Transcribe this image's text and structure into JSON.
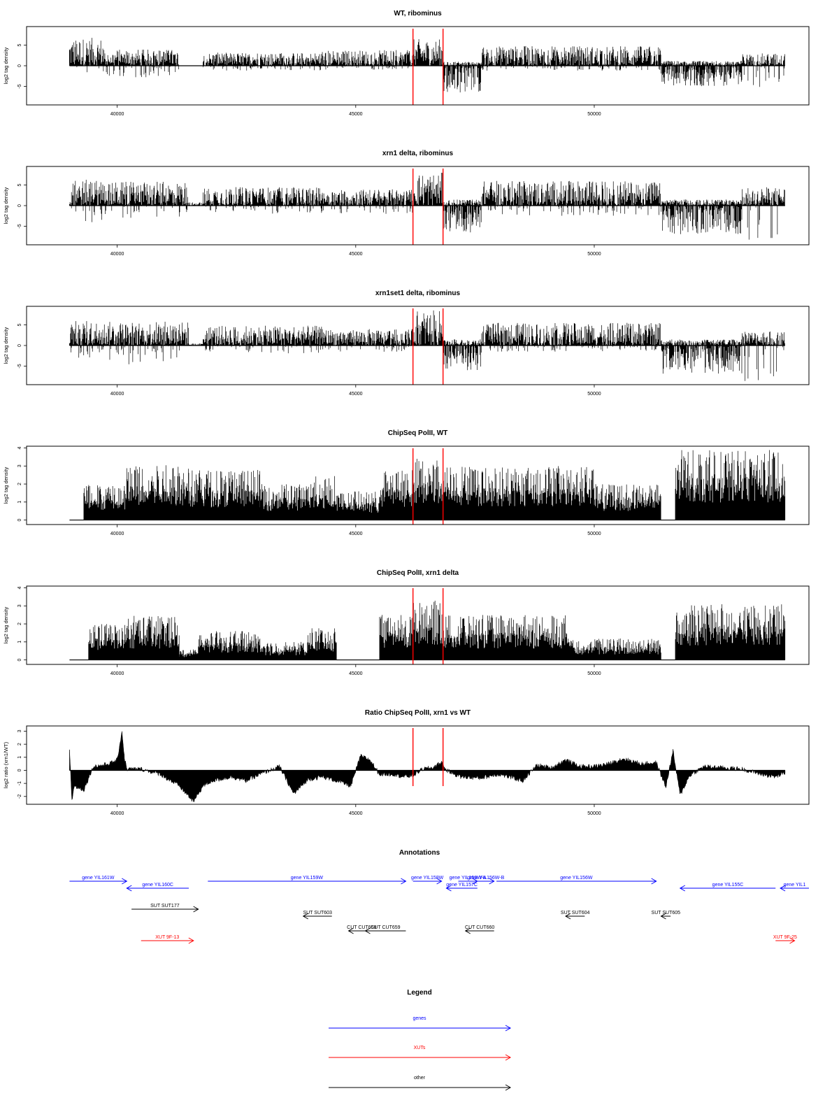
{
  "x_ticks": [
    40000,
    45000,
    50000
  ],
  "markers": {
    "color": "#ff0000",
    "positions": [
      46200,
      46830
    ]
  },
  "chart_data": [
    {
      "type": "bar",
      "title": "WT, ribominus",
      "ylabel": "log2 tag density",
      "xlim": [
        38100,
        54500
      ],
      "ylim": [
        -9.5,
        9.5
      ],
      "yticks": [
        -5,
        0,
        5
      ],
      "baseline": 0,
      "segments": [
        {
          "from": 39000,
          "to": 39700,
          "max": 6.8,
          "min": -3.2
        },
        {
          "from": 39700,
          "to": 41300,
          "max": 4.0,
          "min": -2.8
        },
        {
          "from": 41300,
          "to": 41800,
          "max": 0,
          "min": 0
        },
        {
          "from": 41800,
          "to": 44300,
          "max": 3.2,
          "min": -1.2
        },
        {
          "from": 44300,
          "to": 46200,
          "max": 3.8,
          "min": -1.0
        },
        {
          "from": 46200,
          "to": 46830,
          "max": 6.5,
          "min": 0
        },
        {
          "from": 46830,
          "to": 47640,
          "max": 1.0,
          "min": -6.5
        },
        {
          "from": 47640,
          "to": 51400,
          "max": 4.8,
          "min": -1.2
        },
        {
          "from": 51400,
          "to": 53100,
          "max": 1.2,
          "min": -5.0
        },
        {
          "from": 53100,
          "to": 54000,
          "max": 3.0,
          "min": -5.8
        }
      ]
    },
    {
      "type": "bar",
      "title": "xrn1 delta, ribominus",
      "ylabel": "log2 tag density",
      "xlim": [
        38100,
        54500
      ],
      "ylim": [
        -9.5,
        9.5
      ],
      "yticks": [
        -5,
        0,
        5
      ],
      "baseline": 0,
      "segments": [
        {
          "from": 39000,
          "to": 39700,
          "max": 6.3,
          "min": -4.3
        },
        {
          "from": 39700,
          "to": 41500,
          "max": 5.8,
          "min": -3.0
        },
        {
          "from": 41500,
          "to": 41800,
          "max": 0.8,
          "min": 0
        },
        {
          "from": 41800,
          "to": 44300,
          "max": 4.5,
          "min": -2.0
        },
        {
          "from": 44300,
          "to": 46200,
          "max": 4.0,
          "min": -2.0
        },
        {
          "from": 46200,
          "to": 46830,
          "max": 8.0,
          "min": 0
        },
        {
          "from": 46830,
          "to": 47640,
          "max": 1.5,
          "min": -6.5
        },
        {
          "from": 47640,
          "to": 51400,
          "max": 6.0,
          "min": -2.5
        },
        {
          "from": 51400,
          "to": 53100,
          "max": 1.5,
          "min": -7.0
        },
        {
          "from": 53100,
          "to": 54000,
          "max": 4.5,
          "min": -9.0
        }
      ]
    },
    {
      "type": "bar",
      "title": "xrn1set1 delta, ribominus",
      "ylabel": "log2 tag density",
      "xlim": [
        38100,
        54500
      ],
      "ylim": [
        -9.5,
        9.5
      ],
      "yticks": [
        -5,
        0,
        5
      ],
      "baseline": 0,
      "segments": [
        {
          "from": 39000,
          "to": 39700,
          "max": 6.0,
          "min": -3.0
        },
        {
          "from": 39700,
          "to": 41500,
          "max": 5.8,
          "min": -5.0
        },
        {
          "from": 41500,
          "to": 41800,
          "max": 0.5,
          "min": 0
        },
        {
          "from": 41800,
          "to": 44300,
          "max": 4.8,
          "min": -2.0
        },
        {
          "from": 44300,
          "to": 46200,
          "max": 4.0,
          "min": -1.5
        },
        {
          "from": 46200,
          "to": 46830,
          "max": 8.5,
          "min": 0
        },
        {
          "from": 46830,
          "to": 47640,
          "max": 1.5,
          "min": -6.0
        },
        {
          "from": 47640,
          "to": 51400,
          "max": 5.5,
          "min": -1.5
        },
        {
          "from": 51400,
          "to": 53100,
          "max": 1.5,
          "min": -7.0
        },
        {
          "from": 53100,
          "to": 54000,
          "max": 3.5,
          "min": -9.0
        }
      ]
    },
    {
      "type": "bar",
      "title": "ChipSeq PolII, WT",
      "ylabel": "log2 tag density",
      "xlim": [
        38100,
        54500
      ],
      "ylim": [
        -0.25,
        4.1
      ],
      "yticks": [
        0,
        1,
        2,
        3,
        4
      ],
      "baseline": 0,
      "segments": [
        {
          "from": 39000,
          "to": 39300,
          "max": 0,
          "min": 0
        },
        {
          "from": 39300,
          "to": 40200,
          "max": 2.0,
          "min": 0
        },
        {
          "from": 40200,
          "to": 41500,
          "max": 3.2,
          "min": 0
        },
        {
          "from": 41500,
          "to": 43000,
          "max": 2.8,
          "min": 0
        },
        {
          "from": 43000,
          "to": 44000,
          "max": 2.0,
          "min": 0
        },
        {
          "from": 44000,
          "to": 44600,
          "max": 2.5,
          "min": 0
        },
        {
          "from": 44600,
          "to": 45500,
          "max": 1.6,
          "min": 0
        },
        {
          "from": 45500,
          "to": 46200,
          "max": 2.8,
          "min": 0
        },
        {
          "from": 46200,
          "to": 46830,
          "max": 3.5,
          "min": 0
        },
        {
          "from": 46830,
          "to": 47500,
          "max": 3.0,
          "min": 0
        },
        {
          "from": 47500,
          "to": 50000,
          "max": 3.0,
          "min": 0
        },
        {
          "from": 50000,
          "to": 51400,
          "max": 2.0,
          "min": 0
        },
        {
          "from": 51400,
          "to": 51700,
          "max": 0,
          "min": 0
        },
        {
          "from": 51700,
          "to": 54000,
          "max": 3.9,
          "min": 0
        }
      ]
    },
    {
      "type": "bar",
      "title": "ChipSeq PolII, xrn1 delta",
      "ylabel": "log2 tag density",
      "xlim": [
        38100,
        54500
      ],
      "ylim": [
        -0.25,
        4.1
      ],
      "yticks": [
        0,
        1,
        2,
        3,
        4
      ],
      "baseline": 0,
      "segments": [
        {
          "from": 39000,
          "to": 39400,
          "max": 0,
          "min": 0
        },
        {
          "from": 39400,
          "to": 40200,
          "max": 2.0,
          "min": 0
        },
        {
          "from": 40200,
          "to": 41300,
          "max": 2.5,
          "min": 0
        },
        {
          "from": 41300,
          "to": 41700,
          "max": 0.6,
          "min": 0
        },
        {
          "from": 41700,
          "to": 43000,
          "max": 1.6,
          "min": 0
        },
        {
          "from": 43000,
          "to": 44000,
          "max": 1.0,
          "min": 0
        },
        {
          "from": 44000,
          "to": 44600,
          "max": 1.8,
          "min": 0
        },
        {
          "from": 44600,
          "to": 45500,
          "max": 0,
          "min": 0
        },
        {
          "from": 45500,
          "to": 46200,
          "max": 2.5,
          "min": 0
        },
        {
          "from": 46200,
          "to": 46830,
          "max": 3.3,
          "min": 0
        },
        {
          "from": 46830,
          "to": 48500,
          "max": 2.5,
          "min": 0
        },
        {
          "from": 48500,
          "to": 49500,
          "max": 2.5,
          "min": 0
        },
        {
          "from": 49500,
          "to": 51400,
          "max": 1.2,
          "min": 0
        },
        {
          "from": 51400,
          "to": 51700,
          "max": 0,
          "min": 0
        },
        {
          "from": 51700,
          "to": 54000,
          "max": 3.1,
          "min": 0
        }
      ]
    },
    {
      "type": "area",
      "title": "Ratio ChipSeq PolII, xrn1 vs WT",
      "ylabel": "log2 ratio (xrn1/WT)",
      "xlim": [
        38100,
        54500
      ],
      "ylim": [
        -2.6,
        3.4
      ],
      "yticks": [
        -2,
        -1,
        0,
        1,
        2,
        3
      ],
      "baseline": 0,
      "x": [
        39000,
        39050,
        39100,
        39300,
        39500,
        39700,
        39900,
        40000,
        40100,
        40150,
        40200,
        40500,
        40900,
        41300,
        41600,
        41800,
        42000,
        42400,
        42700,
        43000,
        43400,
        43700,
        44000,
        44300,
        44600,
        44900,
        45100,
        45300,
        45500,
        45800,
        46000,
        46200,
        46400,
        46600,
        46800,
        46900,
        47200,
        47600,
        48000,
        48500,
        48800,
        49100,
        49400,
        49700,
        50000,
        50300,
        50600,
        51000,
        51300,
        51500,
        51650,
        51800,
        52000,
        52300,
        52700,
        53100,
        53500,
        53800,
        54000
      ],
      "y": [
        1.6,
        -2.3,
        -1.2,
        -1.5,
        0.3,
        0.4,
        0.6,
        0.8,
        3.0,
        1.0,
        0.1,
        0.1,
        -0.3,
        -1.2,
        -2.4,
        -1.2,
        -0.8,
        -0.5,
        -0.8,
        -0.3,
        0.3,
        -1.8,
        -0.7,
        -0.5,
        -0.8,
        -1.2,
        1.1,
        0.8,
        -0.3,
        -0.3,
        -0.5,
        -0.4,
        0.1,
        0.2,
        0.6,
        0.0,
        -0.5,
        -0.6,
        -0.3,
        -0.8,
        0.4,
        0.2,
        0.8,
        0.3,
        0.3,
        0.5,
        0.9,
        0.5,
        0.6,
        -1.3,
        1.5,
        -1.9,
        -0.4,
        0.3,
        0.2,
        0.1,
        -0.3,
        -0.5,
        -0.2
      ]
    },
    {
      "type": "table",
      "title": "Annotations",
      "xlim": [
        38100,
        54500
      ],
      "tracks": [
        {
          "name": "gene YIL161W",
          "color": "#0000ff",
          "start": 39000,
          "end": 40200,
          "row": 0,
          "dir": "right"
        },
        {
          "name": "gene YIL160C",
          "color": "#0000ff",
          "start": 40200,
          "end": 41500,
          "row": 1,
          "dir": "left"
        },
        {
          "name": "gene YIL159W",
          "color": "#0000ff",
          "start": 41900,
          "end": 46050,
          "row": 0,
          "dir": "right"
        },
        {
          "name": "gene YIL158W",
          "color": "#0000ff",
          "start": 46200,
          "end": 46800,
          "row": 0,
          "dir": "right"
        },
        {
          "name": "gene YIL157C",
          "color": "#0000ff",
          "start": 46900,
          "end": 47550,
          "row": 1,
          "dir": "left"
        },
        {
          "name": "gene YIL156W-A",
          "color": "#0000ff",
          "start": 47150,
          "end": 47550,
          "row": 0,
          "dir": "right"
        },
        {
          "name": "gene YIL156W-B",
          "color": "#0000ff",
          "start": 47550,
          "end": 47900,
          "row": 0,
          "dir": "right"
        },
        {
          "name": "gene YIL156W",
          "color": "#0000ff",
          "start": 47950,
          "end": 51300,
          "row": 0,
          "dir": "right"
        },
        {
          "name": "gene YIL155C",
          "color": "#0000ff",
          "start": 51800,
          "end": 53800,
          "row": 1,
          "dir": "left"
        },
        {
          "name": "gene YIL1",
          "color": "#0000ff",
          "start": 53900,
          "end": 54500,
          "row": 1,
          "dir": "left"
        },
        {
          "name": "SUT SUT177",
          "color": "#000000",
          "start": 40300,
          "end": 41700,
          "row": 2,
          "dir": "right"
        },
        {
          "name": "SUT SUT603",
          "color": "#000000",
          "start": 43900,
          "end": 44500,
          "row": 3,
          "dir": "left"
        },
        {
          "name": "SUT SUT604",
          "color": "#000000",
          "start": 49400,
          "end": 49800,
          "row": 3,
          "dir": "left"
        },
        {
          "name": "SUT SUT605",
          "color": "#000000",
          "start": 51400,
          "end": 51600,
          "row": 3,
          "dir": "left"
        },
        {
          "name": "CUT CUT658",
          "color": "#000000",
          "start": 44850,
          "end": 45400,
          "row": 4,
          "dir": "left"
        },
        {
          "name": "CUT CUT659",
          "color": "#000000",
          "start": 45200,
          "end": 46050,
          "row": 4,
          "dir": "left"
        },
        {
          "name": "CUT CUT660",
          "color": "#000000",
          "start": 47300,
          "end": 47900,
          "row": 4,
          "dir": "left"
        },
        {
          "name": "XUT 9F-13",
          "color": "#ff0000",
          "start": 40500,
          "end": 41600,
          "row": 5,
          "dir": "right"
        },
        {
          "name": "XUT 9F-25",
          "color": "#ff0000",
          "start": 53800,
          "end": 54200,
          "row": 5,
          "dir": "right"
        }
      ]
    },
    {
      "type": "table",
      "title": "Legend",
      "entries": [
        {
          "label": "genes",
          "color": "#0000ff"
        },
        {
          "label": "XUTs",
          "color": "#ff0000"
        },
        {
          "label": "other",
          "color": "#000000"
        }
      ]
    }
  ]
}
